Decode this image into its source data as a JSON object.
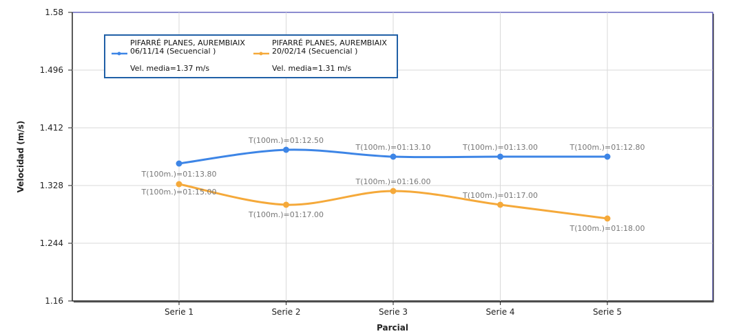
{
  "chart_data": {
    "type": "line",
    "xlabel": "Parcial",
    "ylabel": "Velocidad (m/s)",
    "ylim": [
      1.16,
      1.58
    ],
    "y_ticks": [
      "1.58",
      "1.496",
      "1.412",
      "1.328",
      "1.244",
      "1.16"
    ],
    "categories": [
      "Serie 1",
      "Serie 2",
      "Serie 3",
      "Serie 4",
      "Serie 5"
    ],
    "series": [
      {
        "name": "PIFARRÉ PLANES, AUREMBIAIX",
        "date": "06/11/14 (Secuencial )",
        "avg": "Vel. media=1.37 m/s",
        "color": "#3d85e6",
        "values": [
          1.36,
          1.38,
          1.37,
          1.37,
          1.37
        ],
        "labels": [
          "T(100m.)=01:13.80",
          "T(100m.)=01:12.50",
          "T(100m.)=01:13.10",
          "T(100m.)=01:13.00",
          "T(100m.)=01:12.80"
        ]
      },
      {
        "name": "PIFARRÉ PLANES, AUREMBIAIX",
        "date": "20/02/14 (Secuencial )",
        "avg": "Vel. media=1.31 m/s",
        "color": "#f5a93a",
        "values": [
          1.33,
          1.3,
          1.32,
          1.3,
          1.28
        ],
        "labels": [
          "T(100m.)=01:15.00",
          "T(100m.)=01:17.00",
          "T(100m.)=01:16.00",
          "T(100m.)=01:17.00",
          "T(100m.)=01:18.00"
        ]
      }
    ]
  }
}
